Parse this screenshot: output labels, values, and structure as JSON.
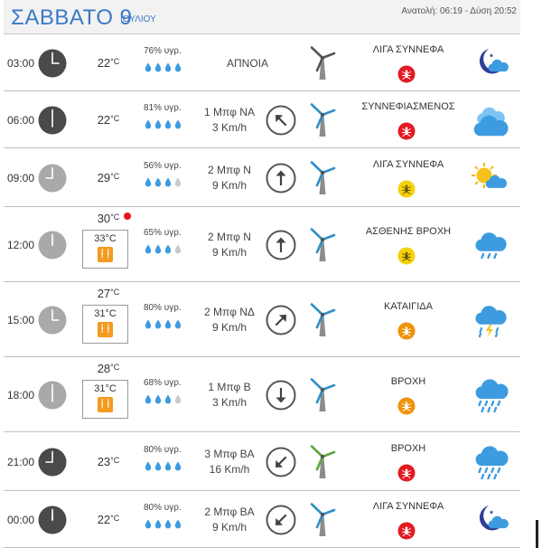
{
  "header": {
    "day_title": "ΣΑΒΒΑΤΟ 9",
    "month": "ΙΟΥΛΙΟΥ",
    "sun_times": "Ανατολή: 06:19 - Δύση 20:52"
  },
  "colors": {
    "accent": "#3a7ac5",
    "drop_filled": "#3d9be0",
    "drop_empty": "#c9c9c9",
    "badge_red": "#e31b23",
    "badge_yellow": "#f5d10c",
    "badge_orange": "#f0920a",
    "feel_orange": "#f39a1f"
  },
  "rows": [
    {
      "time": "03:00",
      "clock": "dark",
      "temp": "22",
      "unit": "°C",
      "feels": null,
      "humidity": "76% υγρ.",
      "drops": 4,
      "wind_speed": "ΑΠΝΟΙΑ",
      "wind_kmh": "",
      "arrow": "none",
      "turbine": "gray",
      "condition": "ΛΙΓΑ ΣΥΝΝΕΦΑ",
      "badge": "red",
      "weather_icon": "moon-cloud-icon"
    },
    {
      "time": "06:00",
      "clock": "dark",
      "temp": "22",
      "unit": "°C",
      "feels": null,
      "humidity": "81% υγρ.",
      "drops": 4,
      "wind_speed": "1 Μπφ ΝΑ",
      "wind_kmh": "3 Km/h",
      "arrow": "up-left",
      "turbine": "blue",
      "condition": "ΣΥΝΝΕΦΙΑΣΜΕΝΟΣ",
      "badge": "red",
      "weather_icon": "clouds-icon"
    },
    {
      "time": "09:00",
      "clock": "light",
      "temp": "29",
      "unit": "°C",
      "feels": null,
      "humidity": "56% υγρ.",
      "drops": 3,
      "wind_speed": "2 Μπφ Ν",
      "wind_kmh": "9 Km/h",
      "arrow": "up",
      "turbine": "blue",
      "condition": "ΛΙΓΑ ΣΥΝΝΕΦΑ",
      "badge": "yellow",
      "weather_icon": "sun-cloud-icon"
    },
    {
      "time": "12:00",
      "clock": "light",
      "temp": "30",
      "unit": "°C",
      "feels": "33°C",
      "humidity": "65% υγρ.",
      "drops": 3,
      "wind_speed": "2 Μπφ Ν",
      "wind_kmh": "9 Km/h",
      "arrow": "up",
      "turbine": "blue",
      "condition": "ΑΣΘΕΝΗΣ ΒΡΟΧΗ",
      "badge": "yellow",
      "weather_icon": "light-rain-icon"
    },
    {
      "time": "15:00",
      "clock": "light",
      "temp": "27",
      "unit": "°C",
      "feels": "31°C",
      "humidity": "80% υγρ.",
      "drops": 4,
      "wind_speed": "2 Μπφ ΝΔ",
      "wind_kmh": "9 Km/h",
      "arrow": "up-right",
      "turbine": "blue",
      "condition": "ΚΑΤΑΙΓΙΔΑ",
      "badge": "orange",
      "weather_icon": "thunderstorm-icon"
    },
    {
      "time": "18:00",
      "clock": "light",
      "temp": "28",
      "unit": "°C",
      "feels": "31°C",
      "humidity": "68% υγρ.",
      "drops": 3,
      "wind_speed": "1 Μπφ Β",
      "wind_kmh": "3 Km/h",
      "arrow": "down",
      "turbine": "blue",
      "condition": "ΒΡΟΧΗ",
      "badge": "orange",
      "weather_icon": "rain-icon"
    },
    {
      "time": "21:00",
      "clock": "dark",
      "temp": "23",
      "unit": "°C",
      "feels": null,
      "humidity": "80% υγρ.",
      "drops": 4,
      "wind_speed": "3 Μπφ ΒΑ",
      "wind_kmh": "16 Km/h",
      "arrow": "down-left",
      "turbine": "green",
      "condition": "ΒΡΟΧΗ",
      "badge": "red",
      "weather_icon": "rain-icon"
    },
    {
      "time": "00:00",
      "clock": "dark",
      "temp": "22",
      "unit": "°C",
      "feels": null,
      "humidity": "80% υγρ.",
      "drops": 4,
      "wind_speed": "2 Μπφ ΒΑ",
      "wind_kmh": "9 Km/h",
      "arrow": "down-left",
      "turbine": "blue",
      "condition": "ΛΙΓΑ ΣΥΝΝΕΦΑ",
      "badge": "red",
      "weather_icon": "moon-cloud-icon"
    }
  ]
}
